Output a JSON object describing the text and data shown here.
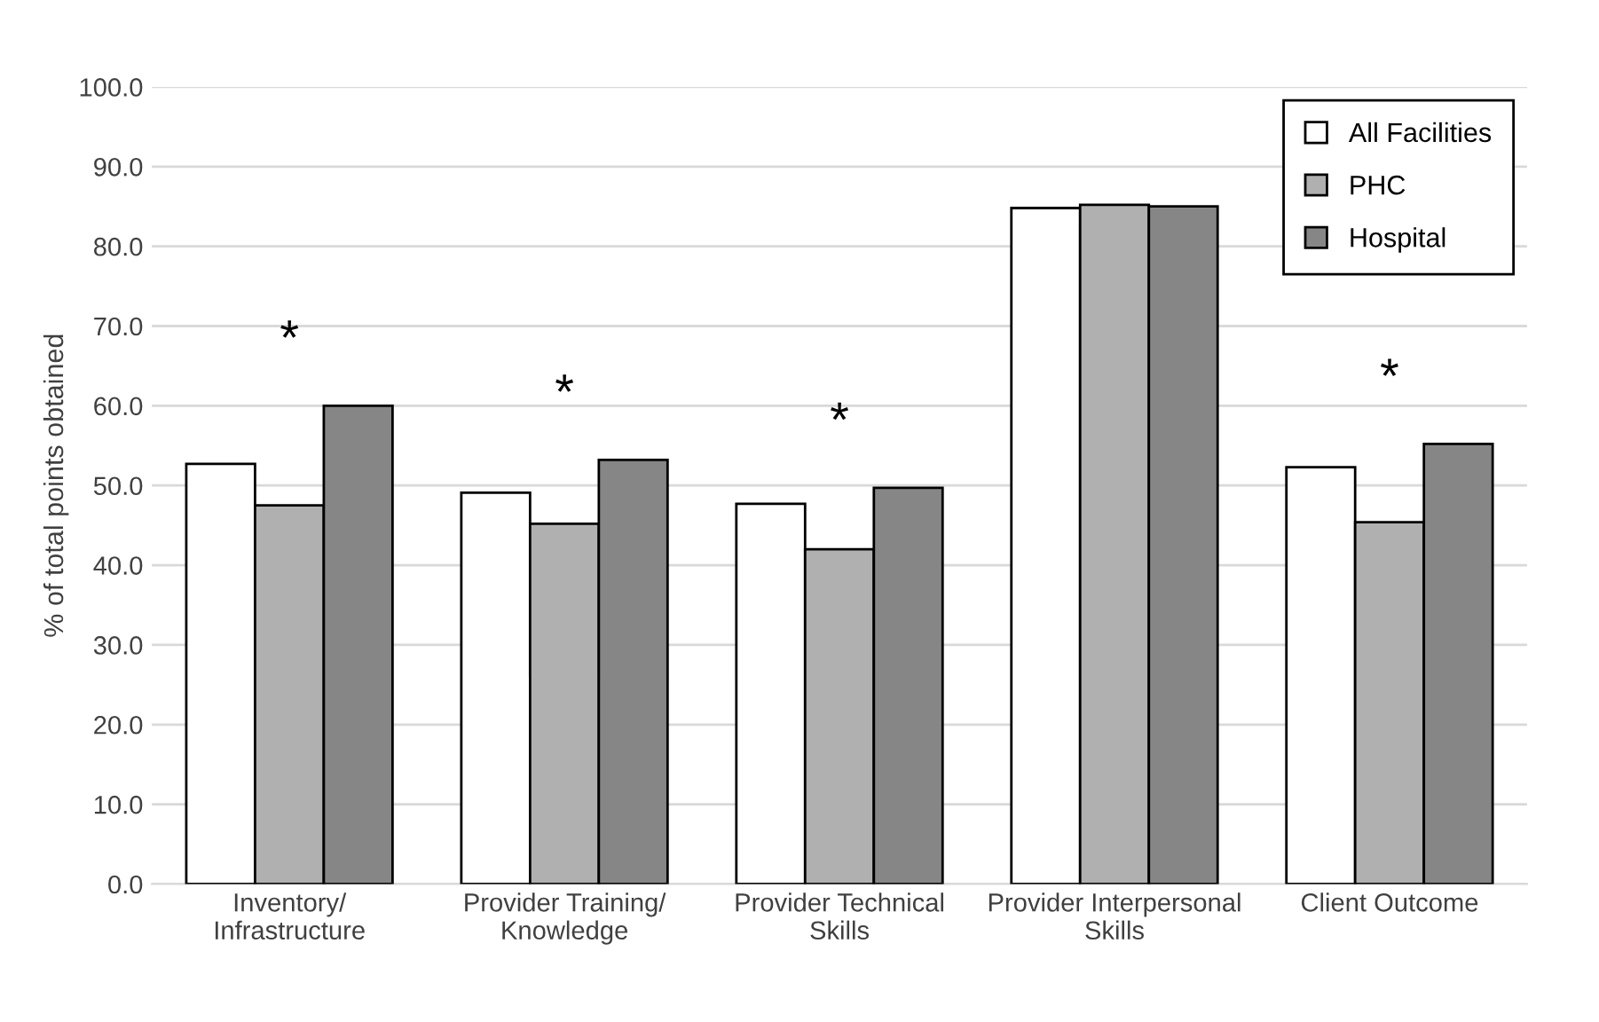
{
  "chart_data": {
    "type": "bar",
    "ylabel": "% of total points obtained",
    "categories": [
      "Inventory/\nInfrastructure",
      "Provider Training/\nKnowledge",
      "Provider Technical\nSkills",
      "Provider Interpersonal\nSkills",
      "Client Outcome"
    ],
    "series": [
      {
        "name": "All Facilities",
        "color": "#ffffff",
        "values": [
          52.7,
          49.1,
          47.7,
          84.8,
          52.3
        ]
      },
      {
        "name": "PHC",
        "color": "#b0b0b0",
        "values": [
          47.5,
          45.2,
          42.0,
          85.2,
          45.4
        ]
      },
      {
        "name": "Hospital",
        "color": "#868686",
        "values": [
          60.0,
          53.2,
          49.7,
          85.0,
          55.2
        ]
      }
    ],
    "ylim": [
      0,
      100
    ],
    "yticks": [
      {
        "value": 0,
        "label": "0.0"
      },
      {
        "value": 10,
        "label": "10.0"
      },
      {
        "value": 20,
        "label": "20.0"
      },
      {
        "value": 30,
        "label": "30.0"
      },
      {
        "value": 40,
        "label": "40.0"
      },
      {
        "value": 50,
        "label": "50.0"
      },
      {
        "value": 60,
        "label": "60.0"
      },
      {
        "value": 70,
        "label": "70.0"
      },
      {
        "value": 80,
        "label": "80.0"
      },
      {
        "value": 90,
        "label": "90.0"
      },
      {
        "value": 100,
        "label": "100.0"
      }
    ],
    "grid": "y",
    "legend": "top right",
    "annotations": [
      "*",
      "*",
      "*",
      "*"
    ]
  }
}
